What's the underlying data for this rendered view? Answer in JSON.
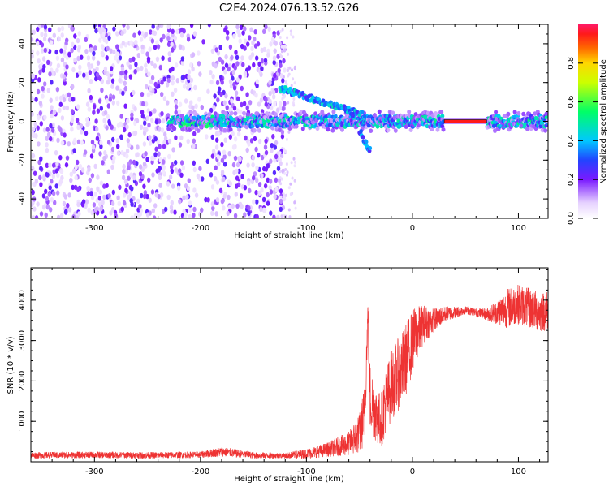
{
  "chart_data": [
    {
      "type": "heatmap",
      "title": "C2E4.2024.076.13.52.G26",
      "xlabel": "Height of straight line (km)",
      "ylabel": "Frequency (Hz)",
      "xlim": [
        -360,
        128
      ],
      "ylim": [
        -50,
        50
      ],
      "x_ticks": [
        -300,
        -200,
        -100,
        0,
        100
      ],
      "y_ticks": [
        -40,
        -20,
        0,
        20,
        40
      ],
      "colorbar": {
        "label": "Normalized spectral amplitude",
        "range": [
          0,
          1
        ],
        "ticks": [
          "0.0",
          "0.2",
          "0.4",
          "0.6",
          "0.8"
        ]
      },
      "features": [
        {
          "name": "noise-region",
          "x": [
            -360,
            -120
          ],
          "y": [
            -50,
            50
          ],
          "amplitude": 0.2
        },
        {
          "name": "main-signal-band",
          "x": [
            -230,
            128
          ],
          "center_hz": 0,
          "width_hz": 4,
          "amplitude": 0.45
        },
        {
          "name": "upper-branch",
          "x": [
            -125,
            -45
          ],
          "start_hz": 17,
          "end_hz": 3,
          "amplitude": 0.4
        },
        {
          "name": "lower-branch",
          "x": [
            -50,
            -40
          ],
          "start_hz": -5,
          "end_hz": -15,
          "amplitude": 0.35
        },
        {
          "name": "steady-line",
          "x": [
            30,
            70
          ],
          "center_hz": 0,
          "amplitude": 0.95
        }
      ]
    },
    {
      "type": "line",
      "title": "",
      "xlabel": "Height of straight line (km)",
      "ylabel": "SNR (10 * v/v)",
      "xlim": [
        -360,
        128
      ],
      "ylim": [
        0,
        4800
      ],
      "x_ticks": [
        -300,
        -200,
        -100,
        0,
        100
      ],
      "y_ticks": [
        1000,
        2000,
        3000,
        4000
      ],
      "color": "#ee3333",
      "series": [
        {
          "name": "SNR",
          "x": [
            -360,
            -300,
            -250,
            -200,
            -180,
            -150,
            -120,
            -100,
            -80,
            -60,
            -50,
            -45,
            -42,
            -40,
            -35,
            -30,
            -25,
            -20,
            -15,
            -10,
            -5,
            0,
            10,
            20,
            30,
            40,
            50,
            60,
            70,
            80,
            90,
            100,
            110,
            120,
            128
          ],
          "values": [
            160,
            170,
            160,
            175,
            250,
            160,
            150,
            200,
            300,
            450,
            700,
            1200,
            3700,
            1600,
            1200,
            1000,
            1500,
            1900,
            2100,
            2300,
            2600,
            3000,
            3400,
            3500,
            3650,
            3700,
            3750,
            3700,
            3650,
            3700,
            3800,
            3900,
            3800,
            3700,
            3750
          ],
          "noise_amp": [
            80,
            80,
            80,
            80,
            120,
            80,
            70,
            120,
            180,
            300,
            500,
            800,
            400,
            900,
            700,
            700,
            800,
            900,
            900,
            900,
            900,
            800,
            500,
            300,
            200,
            150,
            100,
            100,
            150,
            300,
            500,
            500,
            500,
            500,
            500
          ]
        }
      ]
    }
  ]
}
